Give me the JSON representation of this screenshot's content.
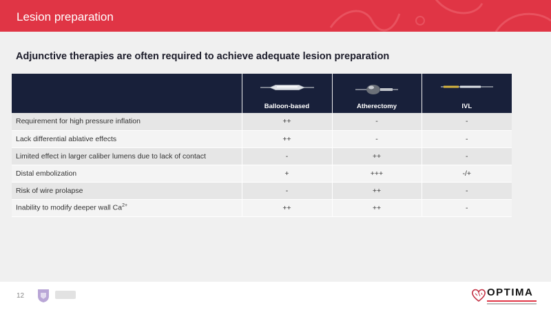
{
  "header": {
    "title": "Lesion preparation"
  },
  "subtitle": "Adjunctive therapies are often required to achieve adequate lesion preparation",
  "table": {
    "columns": [
      {
        "label": "",
        "icon": ""
      },
      {
        "label": "Balloon-based",
        "icon": "balloon-catheter-icon"
      },
      {
        "label": "Atherectomy",
        "icon": "atherectomy-device-icon"
      },
      {
        "label": "IVL",
        "icon": "ivl-catheter-icon"
      }
    ],
    "rows": [
      {
        "label": "Requirement for high pressure inflation",
        "values": [
          "++",
          "-",
          "-"
        ]
      },
      {
        "label": "Lack differential ablative effects",
        "values": [
          "++",
          "-",
          "-"
        ]
      },
      {
        "label": "Limited effect in larger caliber lumens due to lack of contact",
        "values": [
          "-",
          "++",
          "-"
        ]
      },
      {
        "label": "Distal embolization",
        "values": [
          "+",
          "+++",
          "-/+"
        ]
      },
      {
        "label": "Risk of wire prolapse",
        "values": [
          "-",
          "++",
          "-"
        ]
      },
      {
        "label": "Inability to modify deeper wall Ca",
        "label_sup": "2+",
        "values": [
          "++",
          "++",
          "-"
        ]
      }
    ]
  },
  "footer": {
    "page_number": "12",
    "brand": "OPTIMA",
    "university_logo": "university-shield-logo"
  },
  "colors": {
    "header": "#e03545",
    "table_header": "#18203a",
    "row_odd": "#e6e6e6",
    "row_even": "#f4f4f4"
  }
}
